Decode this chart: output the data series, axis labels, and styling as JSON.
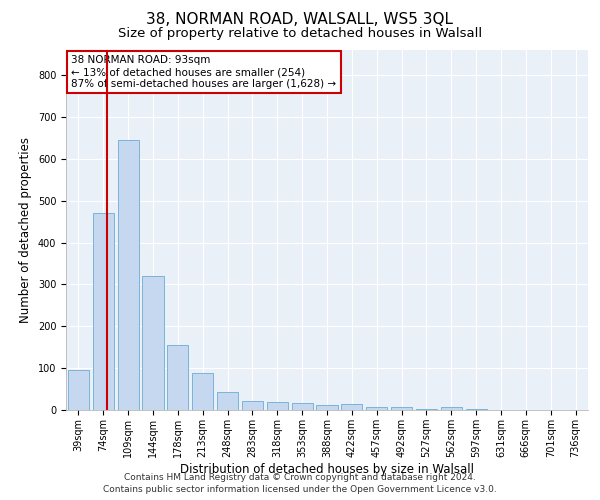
{
  "title1": "38, NORMAN ROAD, WALSALL, WS5 3QL",
  "title2": "Size of property relative to detached houses in Walsall",
  "xlabel": "Distribution of detached houses by size in Walsall",
  "ylabel": "Number of detached properties",
  "categories": [
    "39sqm",
    "74sqm",
    "109sqm",
    "144sqm",
    "178sqm",
    "213sqm",
    "248sqm",
    "283sqm",
    "318sqm",
    "353sqm",
    "388sqm",
    "422sqm",
    "457sqm",
    "492sqm",
    "527sqm",
    "562sqm",
    "597sqm",
    "631sqm",
    "666sqm",
    "701sqm",
    "736sqm"
  ],
  "values": [
    95,
    470,
    645,
    320,
    155,
    88,
    42,
    22,
    18,
    17,
    12,
    14,
    7,
    6,
    2,
    8,
    2,
    1,
    1,
    1,
    1
  ],
  "bar_color": "#c5d8f0",
  "bar_edge_color": "#7ab4d8",
  "bar_width": 0.85,
  "redline_color": "#cc0000",
  "annotation_text": "38 NORMAN ROAD: 93sqm\n← 13% of detached houses are smaller (254)\n87% of semi-detached houses are larger (1,628) →",
  "annotation_box_color": "#ffffff",
  "annotation_box_edge": "#cc0000",
  "ylim": [
    0,
    860
  ],
  "yticks": [
    0,
    100,
    200,
    300,
    400,
    500,
    600,
    700,
    800
  ],
  "bg_color": "#eaf0f8",
  "grid_color": "#ffffff",
  "footer1": "Contains HM Land Registry data © Crown copyright and database right 2024.",
  "footer2": "Contains public sector information licensed under the Open Government Licence v3.0.",
  "title1_fontsize": 11,
  "title2_fontsize": 9.5,
  "xlabel_fontsize": 8.5,
  "ylabel_fontsize": 8.5,
  "tick_fontsize": 7,
  "annotation_fontsize": 7.5,
  "footer_fontsize": 6.5
}
